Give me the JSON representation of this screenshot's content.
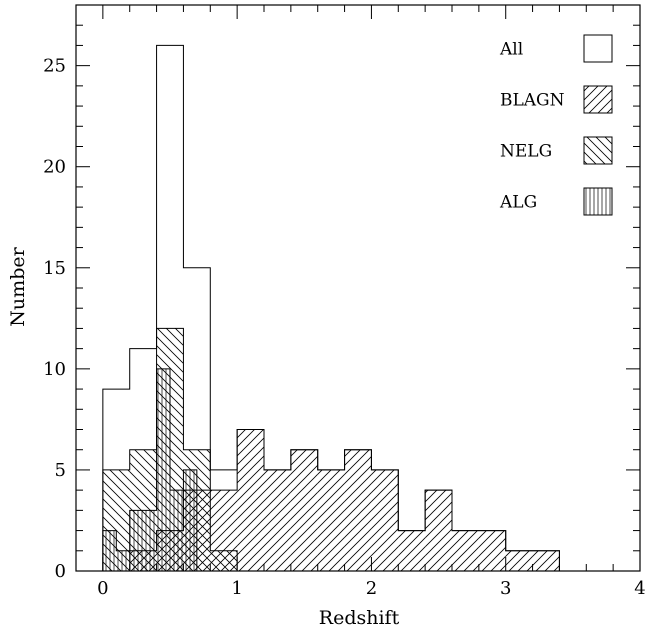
{
  "chart_data": {
    "type": "bar",
    "xlabel": "Redshift",
    "ylabel": "Number",
    "xlim": [
      -0.2,
      4
    ],
    "ylim": [
      0,
      28
    ],
    "bin_width": 0.2,
    "x_ticks": [
      0,
      1,
      2,
      3,
      4
    ],
    "y_ticks": [
      0,
      5,
      10,
      15,
      20,
      25
    ],
    "legend_position": "top-right",
    "series": [
      {
        "name": "All",
        "pattern": "none",
        "bin_starts": [
          0,
          0.2,
          0.4,
          0.6,
          0.8,
          1.0,
          1.2,
          1.4,
          1.6,
          1.8,
          2.0,
          2.2,
          2.4,
          2.6,
          2.8,
          3.0,
          3.2
        ],
        "values": [
          9,
          11,
          26,
          15,
          5,
          7,
          5,
          6,
          5,
          6,
          5,
          2,
          4,
          2,
          2,
          1,
          1
        ]
      },
      {
        "name": "BLAGN",
        "pattern": "diag-up",
        "bin_starts": [
          0,
          0.2,
          0.4,
          0.6,
          0.8,
          1.0,
          1.2,
          1.4,
          1.6,
          1.8,
          2.0,
          2.2,
          2.4,
          2.6,
          2.8,
          3.0,
          3.2
        ],
        "values": [
          0,
          1,
          2,
          4,
          4,
          7,
          5,
          6,
          5,
          6,
          5,
          2,
          4,
          2,
          2,
          1,
          1
        ]
      },
      {
        "name": "NELG",
        "pattern": "diag-down",
        "bin_starts": [
          0,
          0.2,
          0.4,
          0.6,
          0.8,
          1.0
        ],
        "values": [
          5,
          6,
          12,
          6,
          1,
          0
        ]
      },
      {
        "name": "ALG",
        "pattern": "vertical",
        "bin_starts": [
          0,
          0.1,
          0.2,
          0.3,
          0.4,
          0.5,
          0.6,
          0.7
        ],
        "values": [
          2,
          1,
          3,
          3,
          10,
          4,
          5,
          0
        ]
      }
    ]
  }
}
